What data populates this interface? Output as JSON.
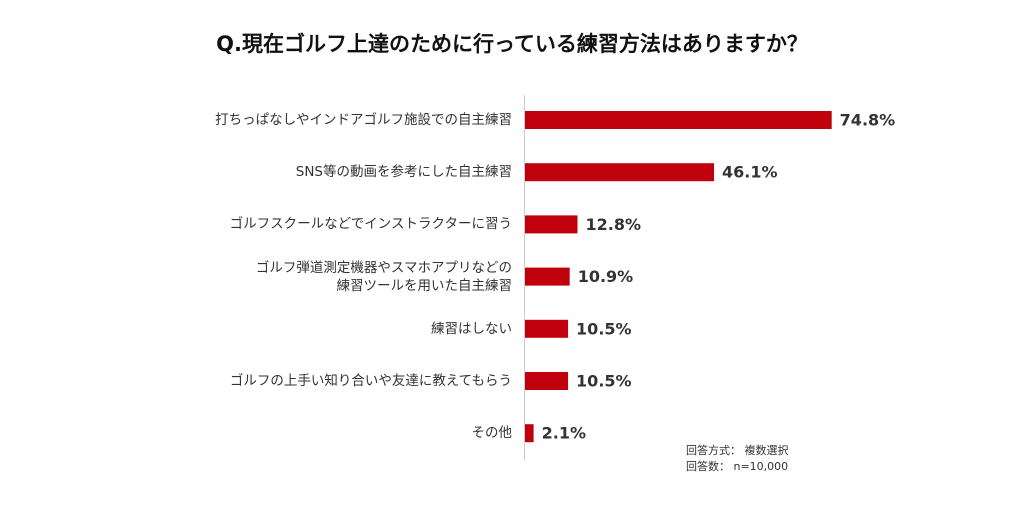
{
  "chart_data": {
    "type": "bar",
    "orientation": "horizontal",
    "title": "Q.現在ゴルフ上達のために行っている練習方法はありますか？",
    "categories": [
      "打ちっぱなしやインドアゴルフ施設での自主練習",
      "SNS等の動画を参考にした自主練習",
      "ゴルフスクールなどでインストラクターに習う",
      "ゴルフ弾道測定機器やスマホアプリなどの\n練習ツールを用いた自主練習",
      "練習はしない",
      "ゴルフの上手い知り合いや友達に教えてもらう",
      "その他"
    ],
    "values": [
      74.8,
      46.1,
      12.8,
      10.9,
      10.5,
      10.5,
      2.1
    ],
    "value_labels": [
      "74.8%",
      "46.1%",
      "12.8%",
      "10.9%",
      "10.5%",
      "10.5%",
      "2.1%"
    ],
    "color": "#c0000c",
    "annotations": [
      "回答方式： 複数選択",
      "回答数： n=10,000"
    ]
  }
}
